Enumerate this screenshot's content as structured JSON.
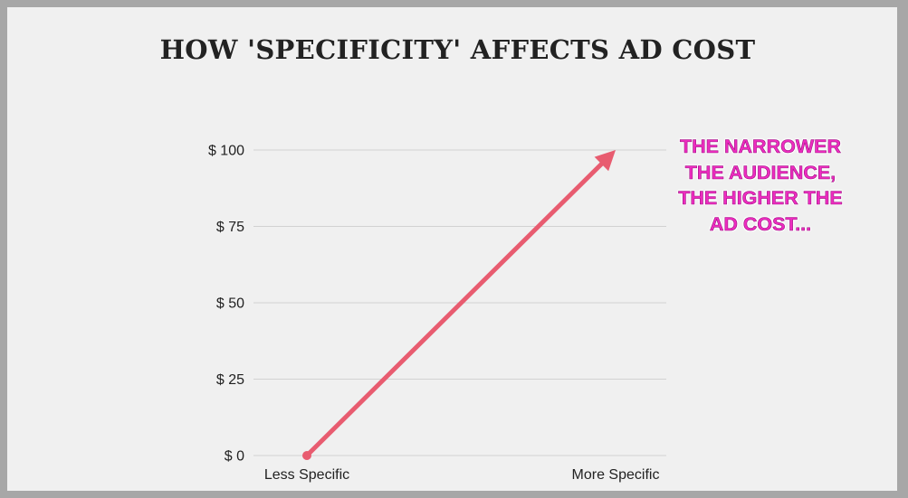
{
  "chart_data": {
    "type": "line",
    "title": "HOW 'SPECIFICITY' AFFECTS AD COST",
    "xlabel": "",
    "ylabel": "",
    "categories": [
      "Less Specific",
      "More Specific"
    ],
    "y_ticks": [
      "$ 0",
      "$ 25",
      "$ 50",
      "$ 75",
      "$ 100"
    ],
    "y_tick_values": [
      0,
      25,
      50,
      75,
      100
    ],
    "ylim": [
      0,
      100
    ],
    "grid": true,
    "series": [
      {
        "values": [
          0,
          100
        ]
      }
    ],
    "line_style": "arrow",
    "line_color": "#e85c70",
    "annotation": {
      "lines": [
        "THE NARROWER",
        "THE AUDIENCE,",
        "THE HIGHER THE",
        "AD COST..."
      ]
    }
  },
  "colors": {
    "page_border": "#a7a7a7",
    "background": "#f0f0f0",
    "grid": "#d2d2d2",
    "line": "#e85c70",
    "annotation_fill": "#ee2cc0"
  }
}
